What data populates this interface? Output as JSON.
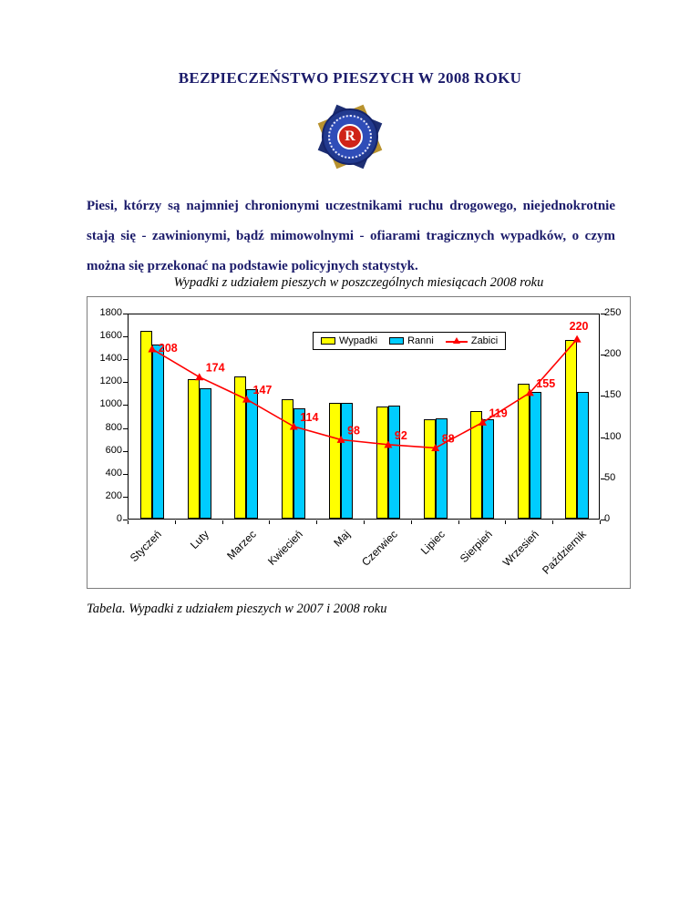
{
  "page": {
    "title": "BEZPIECZEŃSTWO PIESZYCH W 2008 ROKU",
    "logo_letter": "R",
    "intro": "Piesi, którzy są najmniej chronionymi uczestnikami ruchu drogowego, niejednokrotnie stają się - zawinionymi, bądź mimowolnymi - ofiarami tragicznych wypadków, o czym można się przekonać na podstawie policyjnych statystyk.",
    "chart_title": "Wypadki z udziałem pieszych w poszczególnych miesiącach 2008 roku",
    "caption": "Tabela. Wypadki z udziałem pieszych w 2007 i 2008 roku"
  },
  "chart_data": {
    "type": "bar",
    "title": "Wypadki z udziałem pieszych w poszczególnych miesiącach 2008 roku",
    "categories": [
      "Styczeń",
      "Luty",
      "Marzec",
      "Kwiecień",
      "Maj",
      "Czerwiec",
      "Lipiec",
      "Sierpień",
      "Wrzesień",
      "Październik"
    ],
    "series": [
      {
        "name": "Wypadki",
        "type": "bar",
        "axis": "left",
        "color": "#FFFF00",
        "values": [
          1640,
          1220,
          1240,
          1040,
          1010,
          980,
          870,
          940,
          1175,
          1565
        ]
      },
      {
        "name": "Ranni",
        "type": "bar",
        "axis": "left",
        "color": "#00CCFF",
        "values": [
          1520,
          1140,
          1130,
          960,
          1015,
          990,
          880,
          865,
          1110,
          1105
        ]
      },
      {
        "name": "Zabici",
        "type": "line",
        "axis": "right",
        "color": "#FF0000",
        "values": [
          208,
          174,
          147,
          114,
          98,
          92,
          88,
          119,
          155,
          220
        ]
      }
    ],
    "left_axis": {
      "min": 0,
      "max": 1800,
      "step": 200,
      "ticks": [
        0,
        200,
        400,
        600,
        800,
        1000,
        1200,
        1400,
        1600,
        1800
      ]
    },
    "right_axis": {
      "min": 0,
      "max": 250,
      "step": 50,
      "ticks": [
        0,
        50,
        100,
        150,
        200,
        250
      ]
    },
    "legend_position": "top-center",
    "grid": false
  }
}
